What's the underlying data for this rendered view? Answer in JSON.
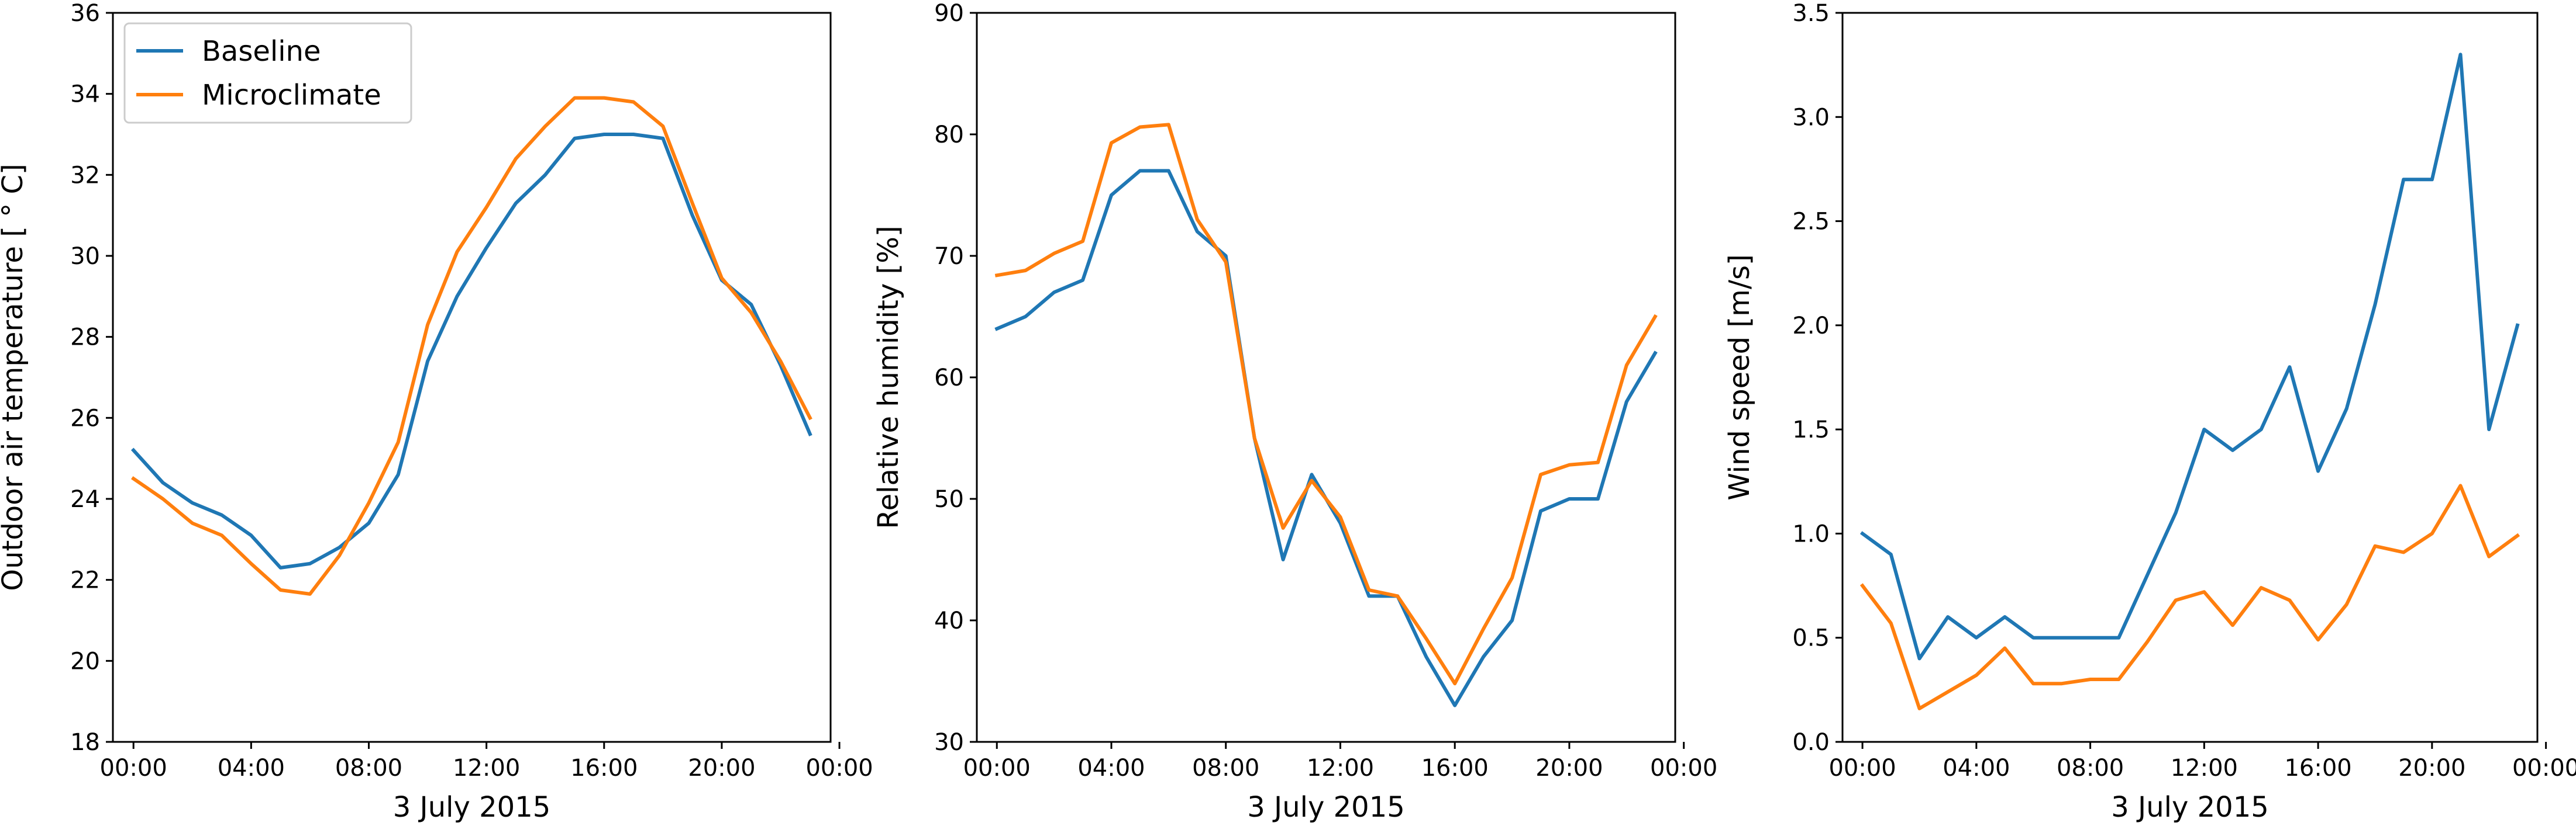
{
  "colors": {
    "baseline": "#1f77b4",
    "microclimate": "#ff7f0e"
  },
  "chart_data": [
    {
      "type": "line",
      "title": "",
      "xlabel": "3 July 2015",
      "ylabel": "Outdoor air temperature [$^\\circ$C]",
      "ylabel_display": "Outdoor air temperature [ ° C]",
      "xlim": [
        -0.7,
        23.7
      ],
      "ylim": [
        18,
        36
      ],
      "xticks": [
        0,
        4,
        8,
        12,
        16,
        20,
        24
      ],
      "xtick_labels": [
        "00:00",
        "04:00",
        "08:00",
        "12:00",
        "16:00",
        "20:00",
        "00:00"
      ],
      "yticks": [
        18,
        20,
        22,
        24,
        26,
        28,
        30,
        32,
        34,
        36
      ],
      "ytick_labels": [
        "18",
        "20",
        "22",
        "24",
        "26",
        "28",
        "30",
        "32",
        "34",
        "36"
      ],
      "grid": false,
      "legend": {
        "placement": "upper-left",
        "entries": [
          "Baseline",
          "Microclimate"
        ]
      },
      "x": [
        0,
        1,
        2,
        3,
        4,
        5,
        6,
        7,
        8,
        9,
        10,
        11,
        12,
        13,
        14,
        15,
        16,
        17,
        18,
        19,
        20,
        21,
        22,
        23
      ],
      "series": [
        {
          "name": "Baseline",
          "color": "#1f77b4",
          "values": [
            25.2,
            24.4,
            23.9,
            23.6,
            23.1,
            22.3,
            22.4,
            22.8,
            23.4,
            24.6,
            27.4,
            29.0,
            30.2,
            31.3,
            32.0,
            32.9,
            33.0,
            33.0,
            32.9,
            31.0,
            29.4,
            28.8,
            27.3,
            25.6
          ]
        },
        {
          "name": "Microclimate",
          "color": "#ff7f0e",
          "values": [
            24.5,
            24.0,
            23.4,
            23.1,
            22.4,
            21.75,
            21.65,
            22.6,
            23.9,
            25.4,
            28.3,
            30.1,
            31.2,
            32.4,
            33.2,
            33.9,
            33.9,
            33.8,
            33.2,
            31.3,
            29.45,
            28.6,
            27.4,
            26.0
          ]
        }
      ]
    },
    {
      "type": "line",
      "title": "",
      "xlabel": "3 July 2015",
      "ylabel": "Relative humidity [%]",
      "xlim": [
        -0.7,
        23.7
      ],
      "ylim": [
        30,
        90
      ],
      "xticks": [
        0,
        4,
        8,
        12,
        16,
        20,
        24
      ],
      "xtick_labels": [
        "00:00",
        "04:00",
        "08:00",
        "12:00",
        "16:00",
        "20:00",
        "00:00"
      ],
      "yticks": [
        30,
        40,
        50,
        60,
        70,
        80,
        90
      ],
      "ytick_labels": [
        "30",
        "40",
        "50",
        "60",
        "70",
        "80",
        "90"
      ],
      "grid": false,
      "x": [
        0,
        1,
        2,
        3,
        4,
        5,
        6,
        7,
        8,
        9,
        10,
        11,
        12,
        13,
        14,
        15,
        16,
        17,
        18,
        19,
        20,
        21,
        22,
        23
      ],
      "series": [
        {
          "name": "Baseline",
          "color": "#1f77b4",
          "values": [
            64,
            65,
            67,
            68,
            75,
            77,
            77,
            72,
            70,
            55,
            45,
            52,
            48,
            42,
            42,
            37,
            33,
            37,
            40,
            49,
            50,
            50,
            58,
            62
          ]
        },
        {
          "name": "Microclimate",
          "color": "#ff7f0e",
          "values": [
            68.4,
            68.8,
            70.2,
            71.2,
            79.3,
            80.6,
            80.8,
            73.0,
            69.5,
            55.0,
            47.6,
            51.5,
            48.5,
            42.5,
            42.0,
            38.5,
            34.8,
            39.3,
            43.5,
            52.0,
            52.8,
            53.0,
            61.0,
            65.0
          ]
        }
      ]
    },
    {
      "type": "line",
      "title": "",
      "xlabel": "3 July 2015",
      "ylabel": "Wind speed [m/s]",
      "xlim": [
        -0.7,
        23.7
      ],
      "ylim": [
        0,
        3.5
      ],
      "xticks": [
        0,
        4,
        8,
        12,
        16,
        20,
        24
      ],
      "xtick_labels": [
        "00:00",
        "04:00",
        "08:00",
        "12:00",
        "16:00",
        "20:00",
        "00:00"
      ],
      "yticks": [
        0,
        0.5,
        1.0,
        1.5,
        2.0,
        2.5,
        3.0,
        3.5
      ],
      "ytick_labels": [
        "0.0",
        "0.5",
        "1.0",
        "1.5",
        "2.0",
        "2.5",
        "3.0",
        "3.5"
      ],
      "grid": false,
      "x": [
        0,
        1,
        2,
        3,
        4,
        5,
        6,
        7,
        8,
        9,
        10,
        11,
        12,
        13,
        14,
        15,
        16,
        17,
        18,
        19,
        20,
        21,
        22,
        23
      ],
      "series": [
        {
          "name": "Baseline",
          "color": "#1f77b4",
          "values": [
            1.0,
            0.9,
            0.4,
            0.6,
            0.5,
            0.6,
            0.5,
            0.5,
            0.5,
            0.5,
            0.8,
            1.1,
            1.5,
            1.4,
            1.5,
            1.8,
            1.3,
            1.6,
            2.1,
            2.7,
            2.7,
            3.3,
            1.5,
            2.0
          ]
        },
        {
          "name": "Microclimate",
          "color": "#ff7f0e",
          "values": [
            0.75,
            0.57,
            0.16,
            0.24,
            0.32,
            0.45,
            0.28,
            0.28,
            0.3,
            0.3,
            0.48,
            0.68,
            0.72,
            0.56,
            0.74,
            0.68,
            0.49,
            0.66,
            0.94,
            0.91,
            1.0,
            1.23,
            0.89,
            0.99
          ]
        }
      ]
    }
  ]
}
